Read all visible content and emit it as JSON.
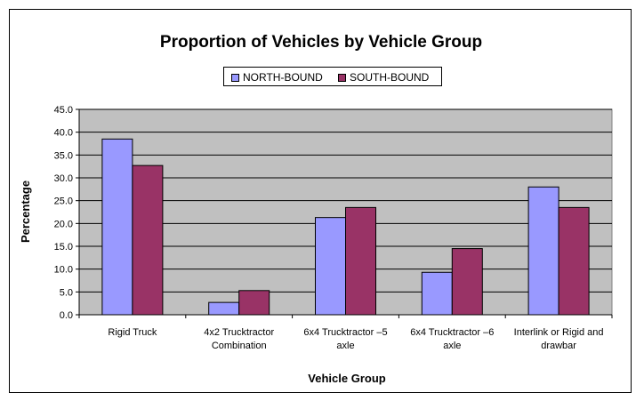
{
  "chart_data": {
    "type": "bar",
    "title": "Proportion of Vehicles by Vehicle Group",
    "xlabel": "Vehicle Group",
    "ylabel": "Percentage",
    "categories": [
      [
        "Rigid Truck"
      ],
      [
        "4x2 Trucktractor",
        "Combination"
      ],
      [
        "6x4 Trucktractor –5",
        "axle"
      ],
      [
        "6x4 Trucktractor –6",
        "axle"
      ],
      [
        "Interlink or Rigid and",
        "drawbar"
      ]
    ],
    "series": [
      {
        "name": "NORTH-BOUND",
        "color": "#9999ff",
        "values": [
          38.5,
          2.7,
          21.3,
          9.3,
          28.0
        ]
      },
      {
        "name": "SOUTH-BOUND",
        "color": "#993366",
        "values": [
          32.7,
          5.3,
          23.5,
          14.5,
          23.5
        ]
      }
    ],
    "ylim": [
      0,
      45
    ],
    "yticks": [
      "0.0",
      "5.0",
      "10.0",
      "15.0",
      "20.0",
      "25.0",
      "30.0",
      "35.0",
      "40.0",
      "45.0"
    ],
    "grid": true,
    "legend_position": "top",
    "plot_background": "#c0c0c0"
  }
}
